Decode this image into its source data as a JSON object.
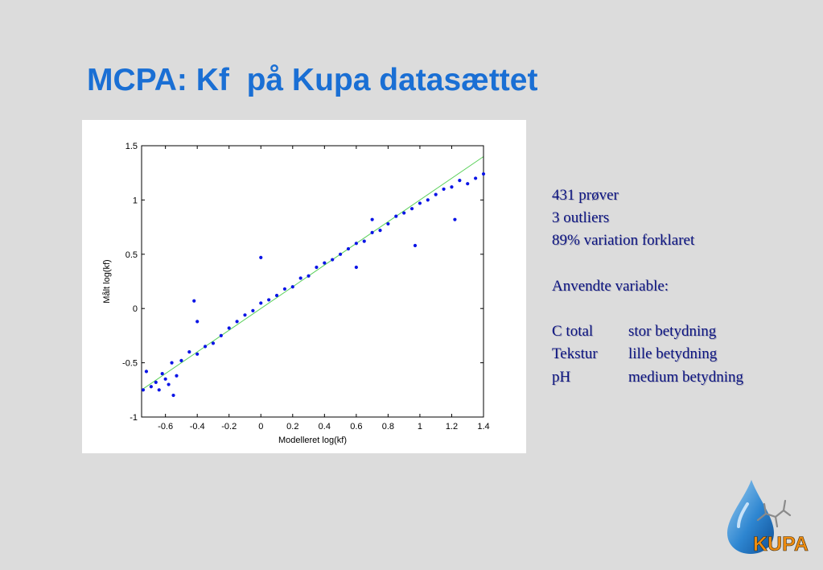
{
  "title": "MCPA: Kf  på Kupa datasættet",
  "notes": {
    "lines": [
      "431 prøver",
      "3 outliers",
      "89% variation forklaret"
    ],
    "variables_heading": "Anvendte variable:",
    "variables": [
      {
        "name": "C total",
        "effect": "stor betydning"
      },
      {
        "name": "Tekstur",
        "effect": "lille betydning"
      },
      {
        "name": "pH",
        "effect": "medium betydning"
      }
    ]
  },
  "logo": {
    "text": "KUPA",
    "icon": "water-drop-molecule-icon"
  },
  "chart_data": {
    "type": "scatter",
    "xlabel": "Modelleret log(kf)",
    "ylabel": "Målt log(kf)",
    "xlim": [
      -0.75,
      1.4
    ],
    "ylim": [
      -1,
      1.5
    ],
    "xticks": [
      "-0.6",
      "-0.4",
      "-0.2",
      "0",
      "0.2",
      "0.4",
      "0.6",
      "0.8",
      "1",
      "1.2",
      "1.4"
    ],
    "xtick_values": [
      -0.6,
      -0.4,
      -0.2,
      0,
      0.2,
      0.4,
      0.6,
      0.8,
      1,
      1.2,
      1.4
    ],
    "yticks": [
      "-1",
      "-0.5",
      "0",
      "0.5",
      "1",
      "1.5"
    ],
    "ytick_values": [
      -1,
      -0.5,
      0,
      0.5,
      1,
      1.5
    ],
    "grid": false,
    "legend": "none",
    "point_color": "#0a14e6",
    "reference_line": {
      "x": [
        -0.75,
        1.4
      ],
      "y": [
        -0.75,
        1.4
      ],
      "color": "#5ad05a"
    },
    "series": [
      {
        "x": [
          -0.74,
          -0.72,
          -0.69,
          -0.66,
          -0.64,
          -0.62,
          -0.6,
          -0.58,
          -0.56,
          -0.55,
          -0.53,
          -0.5,
          -0.45,
          -0.4,
          -0.35,
          -0.3,
          -0.25,
          -0.2,
          -0.15,
          -0.1,
          -0.05,
          0.0,
          0.05,
          0.1,
          0.15,
          0.2,
          0.25,
          0.3,
          0.35,
          0.4,
          0.45,
          0.5,
          0.55,
          0.6,
          0.65,
          0.7,
          0.75,
          0.8,
          0.85,
          0.9,
          0.95,
          1.0,
          1.05,
          1.1,
          1.15,
          1.2,
          1.25,
          1.3,
          1.35,
          1.4,
          0.0,
          0.97,
          1.22,
          -0.42,
          -0.4,
          0.6,
          0.7
        ],
        "y": [
          -0.75,
          -0.58,
          -0.72,
          -0.68,
          -0.75,
          -0.6,
          -0.65,
          -0.7,
          -0.5,
          -0.8,
          -0.62,
          -0.48,
          -0.4,
          -0.42,
          -0.35,
          -0.32,
          -0.25,
          -0.18,
          -0.12,
          -0.06,
          -0.02,
          0.05,
          0.08,
          0.12,
          0.18,
          0.2,
          0.28,
          0.3,
          0.38,
          0.42,
          0.45,
          0.5,
          0.55,
          0.6,
          0.62,
          0.7,
          0.72,
          0.78,
          0.85,
          0.88,
          0.92,
          0.97,
          1.0,
          1.05,
          1.1,
          1.12,
          1.18,
          1.15,
          1.2,
          1.24,
          0.47,
          0.58,
          0.82,
          0.07,
          -0.12,
          0.38,
          0.82
        ]
      }
    ]
  }
}
